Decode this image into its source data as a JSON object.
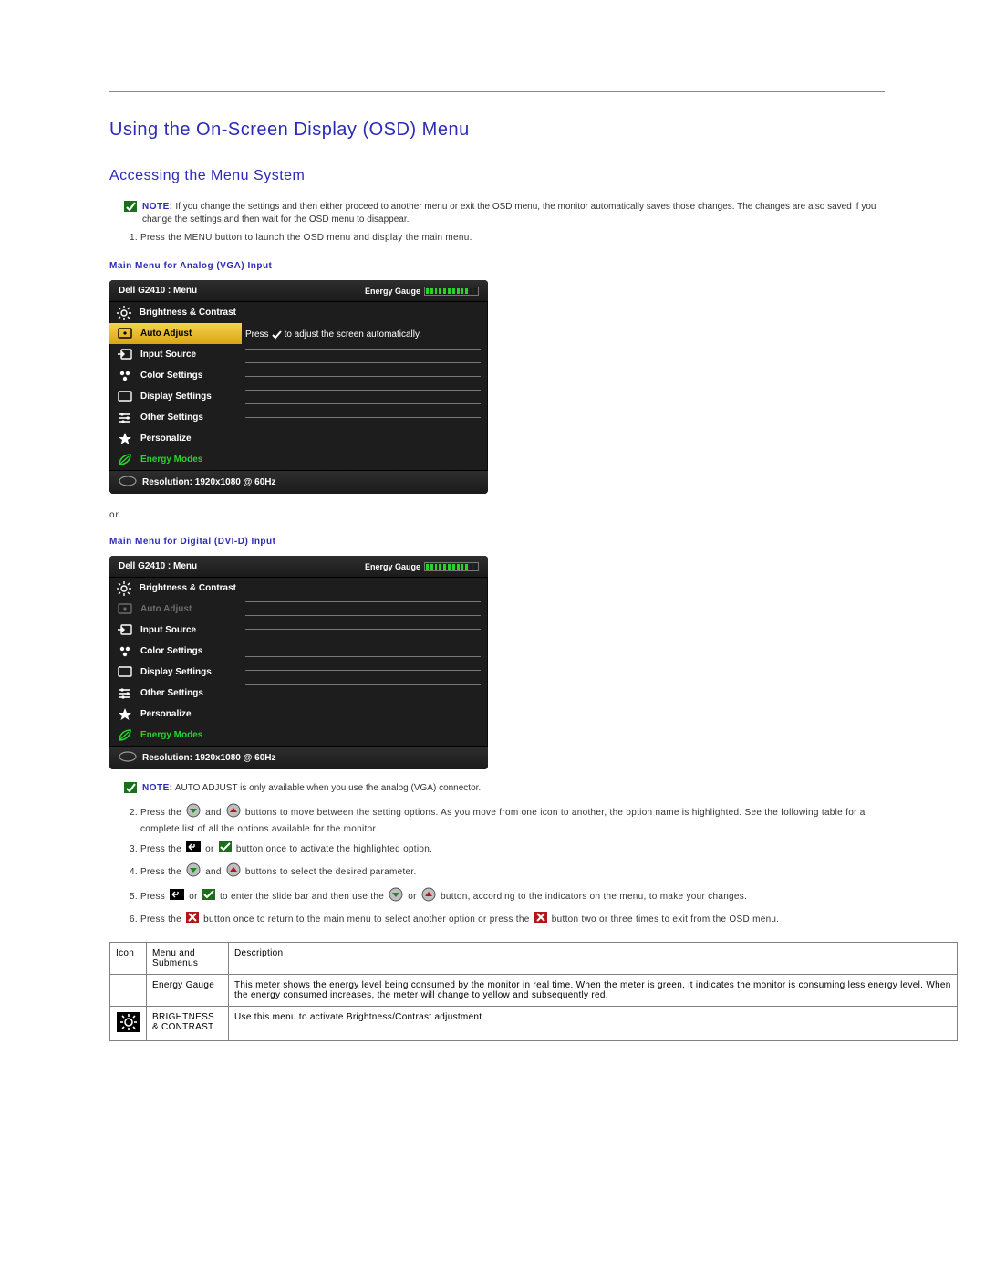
{
  "colors": {
    "heading": "#2b2bb7",
    "osd_bg": "#1d1d1d",
    "osd_highlight": "#e8b923",
    "energy_green": "#28d22f",
    "text": "#333333",
    "rule": "#808080"
  },
  "section": {
    "title": "Using the On-Screen Display (OSD) Menu",
    "subtitle": "Accessing the Menu System"
  },
  "notes": {
    "note1_label": "NOTE:",
    "note1_text": "If you change the settings and then either proceed to another menu or exit the OSD menu, the monitor automatically saves those changes. The changes are also saved if you change the settings and then wait for the OSD menu to disappear.",
    "note2_label": "NOTE:",
    "note2_text": "AUTO ADJUST is only available when you use the analog (VGA) connector."
  },
  "step1": "Press the MENU button to launch the OSD menu and display the main menu.",
  "caption_vga": "Main Menu for Analog (VGA) Input",
  "caption_dvi": "Main Menu for Digital (DVI-D) Input",
  "or_text": "or",
  "osd": {
    "title": "Dell G2410 : Menu",
    "energy_label": "Energy Gauge",
    "gauge_segments": 12,
    "gauge_on_vga": 10,
    "gauge_on_dvi": 10,
    "press_prefix": "Press",
    "auto_adjust_prompt": "to adjust the screen automatically.",
    "items": [
      {
        "label": "Brightness & Contrast",
        "icon": "brightness",
        "state": "normal"
      },
      {
        "label": "Auto Adjust",
        "icon": "auto",
        "state": "highlight_or_disabled"
      },
      {
        "label": "Input Source",
        "icon": "input",
        "state": "normal"
      },
      {
        "label": "Color Settings",
        "icon": "color",
        "state": "normal"
      },
      {
        "label": "Display Settings",
        "icon": "display",
        "state": "normal"
      },
      {
        "label": "Other Settings",
        "icon": "other",
        "state": "normal"
      },
      {
        "label": "Personalize",
        "icon": "star",
        "state": "normal"
      },
      {
        "label": "Energy Modes",
        "icon": "leaf",
        "state": "energy"
      }
    ],
    "footer": "Resolution: 1920x1080 @ 60Hz"
  },
  "steps2to6": {
    "s2a": "Press the",
    "s2b": "and",
    "s2c": "buttons to move between the setting options. As you move from one icon to another, the option name is highlighted. See the following table for a complete list of all the options available for the monitor.",
    "s3a": "Press the",
    "s3b": "or",
    "s3c": "button once to activate the highlighted option.",
    "s4a": "Press the",
    "s4b": "and",
    "s4c": "buttons to select the desired parameter.",
    "s5a": "Press",
    "s5b": "or",
    "s5c": "to enter the slide bar and then use the",
    "s5d": "or",
    "s5e": "button, according to the indicators on the menu, to make your changes.",
    "s6a": "Press the",
    "s6b": "button once to return to the main menu to select another option or press the",
    "s6c": "button two or three times to exit from the OSD menu."
  },
  "table": {
    "headers": {
      "icon": "Icon",
      "menu": "Menu and Submenus",
      "desc": "Description"
    },
    "rows": [
      {
        "icon": "",
        "menu": "Energy Gauge",
        "desc": "This meter shows the energy level being consumed by the monitor in real time. When the meter is green, it indicates the monitor is consuming less energy level. When the energy consumed increases, the meter will change to yellow and subsequently red."
      },
      {
        "icon": "brightness-contrast",
        "menu": "BRIGHTNESS & CONTRAST",
        "desc": "Use this menu to activate Brightness/Contrast adjustment."
      }
    ]
  }
}
